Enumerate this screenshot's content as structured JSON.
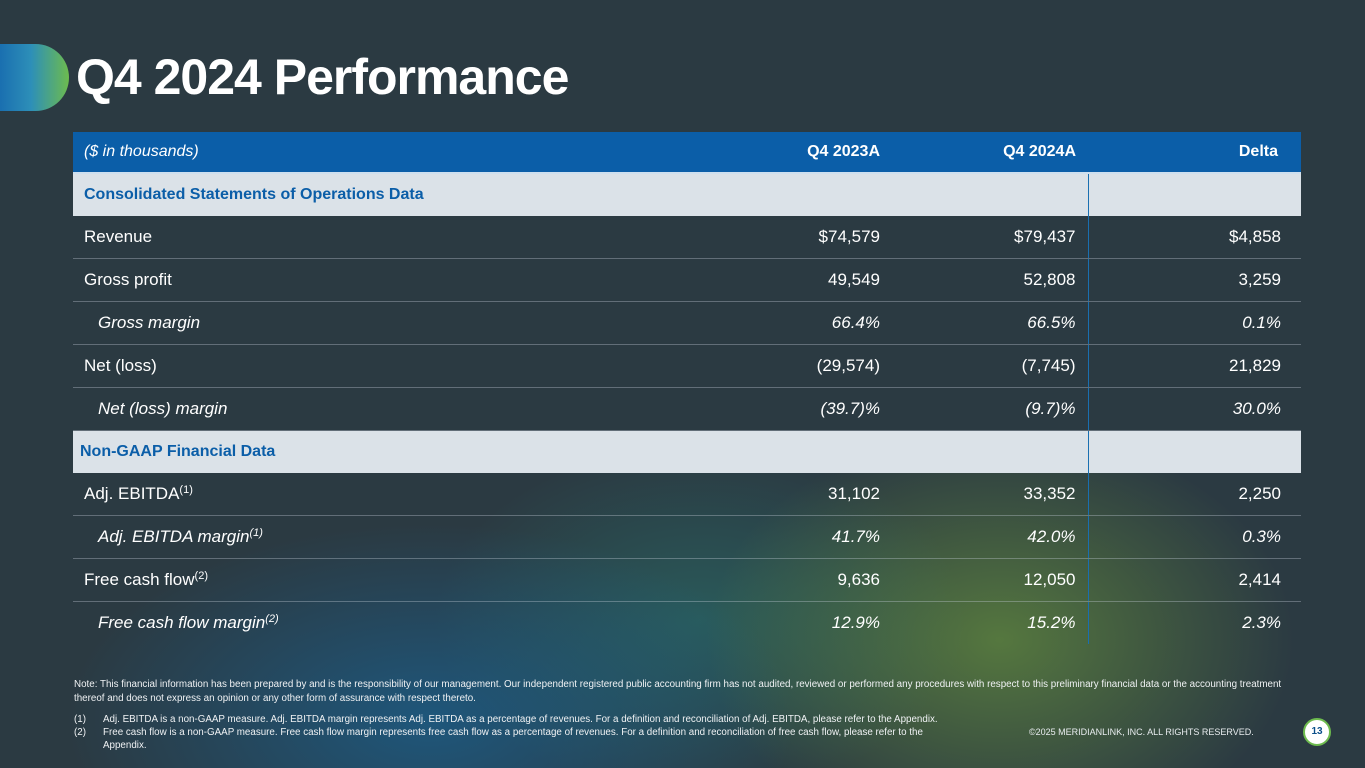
{
  "title": "Q4 2024 Performance",
  "colors": {
    "header_blue": "#0b5ea8",
    "accent_green": "#6dbb4e",
    "section_bg": "#dbe2e8"
  },
  "table": {
    "headers": {
      "unit": "($ in thousands)",
      "col1": "Q4 2023A",
      "col2": "Q4 2024A",
      "col3": "Delta"
    },
    "section1": "Consolidated Statements of Operations Data",
    "section2": "Non-GAAP Financial Data",
    "rows": [
      {
        "label": "Revenue",
        "q4_2023": "$74,579",
        "q4_2024": "$79,437",
        "delta": "$4,858"
      },
      {
        "label": "Gross profit",
        "q4_2023": "49,549",
        "q4_2024": "52,808",
        "delta": "3,259"
      },
      {
        "label": "Gross margin",
        "q4_2023": "66.4%",
        "q4_2024": "66.5%",
        "delta": "0.1%"
      },
      {
        "label": "Net (loss)",
        "q4_2023": "(29,574)",
        "q4_2024": "(7,745)",
        "delta": "21,829"
      },
      {
        "label": "Net (loss) margin",
        "q4_2023": "(39.7)%",
        "q4_2024": "(9.7)%",
        "delta": "30.0%"
      },
      {
        "label": "Adj. EBITDA",
        "sup": "(1)",
        "q4_2023": "31,102",
        "q4_2024": "33,352",
        "delta": "2,250"
      },
      {
        "label": "Adj. EBITDA margin",
        "sup": "(1)",
        "q4_2023": "41.7%",
        "q4_2024": "42.0%",
        "delta": "0.3%"
      },
      {
        "label": "Free cash flow",
        "sup": "(2)",
        "q4_2023": "9,636",
        "q4_2024": "12,050",
        "delta": "2,414"
      },
      {
        "label": "Free cash flow margin",
        "sup": "(2)",
        "q4_2023": "12.9%",
        "q4_2024": "15.2%",
        "delta": "2.3%"
      }
    ]
  },
  "note": "Note: This financial information has been prepared by and is the responsibility of our management. Our independent registered public accounting firm has not audited, reviewed or performed any procedures with respect to this preliminary financial data or the accounting treatment thereof and does not express an opinion or any other form of assurance with respect thereto.",
  "footnotes": [
    {
      "num": "(1)",
      "text": "Adj. EBITDA is a non-GAAP measure. Adj. EBITDA margin represents Adj. EBITDA as a percentage of revenues. For a definition and reconciliation of Adj. EBITDA, please refer to the Appendix."
    },
    {
      "num": "(2)",
      "text": "Free cash flow is a non-GAAP measure. Free cash flow margin represents free cash flow as a percentage of revenues. For a definition and reconciliation of free cash flow, please refer to the",
      "text_cont": "Appendix."
    }
  ],
  "copyright": "©2025 MERIDIANLINK, INC. ALL RIGHTS RESERVED.",
  "page_number": "13"
}
